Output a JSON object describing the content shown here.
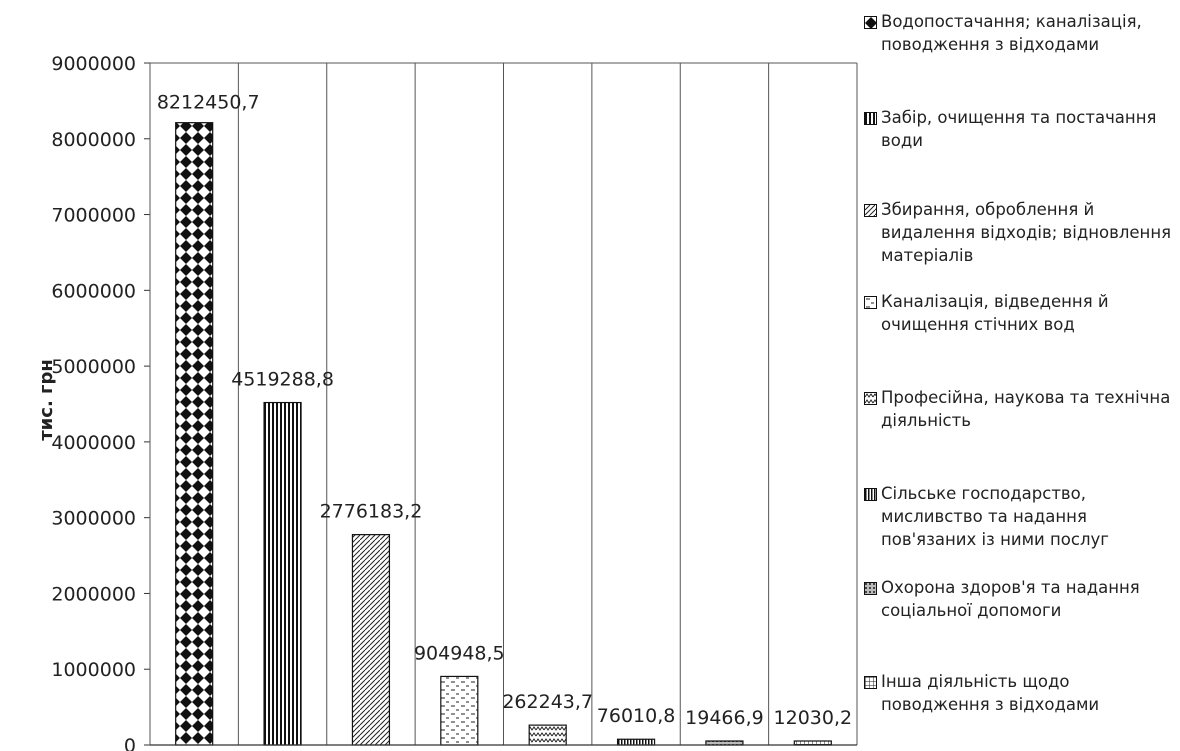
{
  "chart_data": {
    "type": "bar",
    "ylabel": "тис. грн",
    "ylim": [
      0,
      9000000
    ],
    "ytick_labels": [
      "0",
      "1000000",
      "2000000",
      "3000000",
      "4000000",
      "5000000",
      "6000000",
      "7000000",
      "8000000",
      "9000000"
    ],
    "grid": "vertical",
    "legend_position": "right",
    "series": [
      {
        "name": "Водопостачання; каналізація, поводження з відходами",
        "value": 8212450.7,
        "label": "8212450,7",
        "pattern": "checker"
      },
      {
        "name": "Забір, очищення та постачання води",
        "value": 4519288.8,
        "label": "4519288,8",
        "pattern": "vlines"
      },
      {
        "name": "Збирання, оброблення й видалення відходів; відновлення матеріалів",
        "value": 2776183.2,
        "label": "2776183,2",
        "pattern": "brick"
      },
      {
        "name": "Каналізація, відведення й очищення  стічних вод",
        "value": 904948.5,
        "label": "904948,5",
        "pattern": "dashes"
      },
      {
        "name": "Професійна, наукова та технічна діяльність",
        "value": 262243.7,
        "label": "262243,7",
        "pattern": "zigzag"
      },
      {
        "name": "Сільське господарство, мисливство та надання пов'язаних із ними послуг",
        "value": 76010.8,
        "label": "76010,8",
        "pattern": "vlines2"
      },
      {
        "name": "Охорона здоров'я та надання соціальної допомоги",
        "value": 19466.9,
        "label": "19466,9",
        "pattern": "dots"
      },
      {
        "name": "Інша діяльність щодо поводження з відходами",
        "value": 12030.2,
        "label": "12030,2",
        "pattern": "grid"
      }
    ]
  }
}
